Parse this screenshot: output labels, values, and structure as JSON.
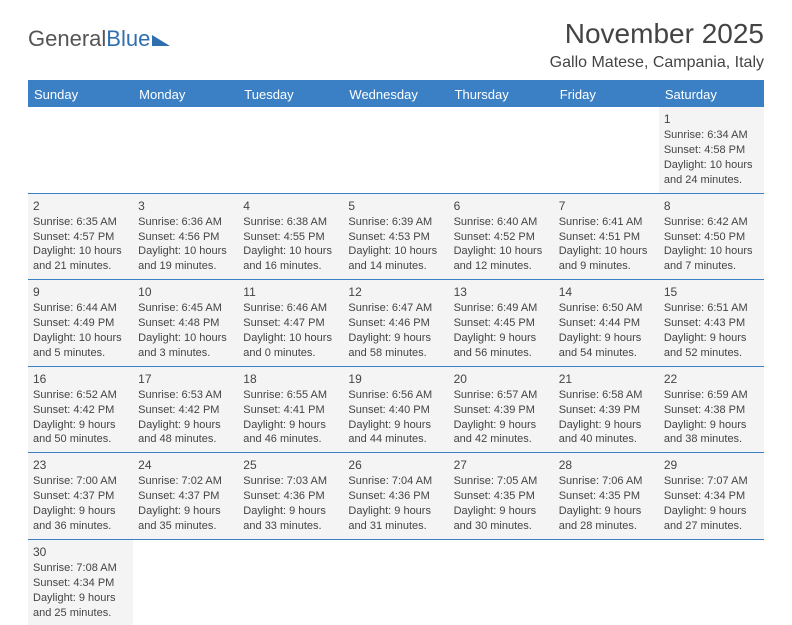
{
  "logo": {
    "part1": "General",
    "part2": "Blue"
  },
  "title": "November 2025",
  "location": "Gallo Matese, Campania, Italy",
  "colors": {
    "header_bg": "#3b7fc4",
    "header_text": "#ffffff",
    "cell_bg": "#f4f4f4",
    "text": "#444444",
    "border": "#3b7fc4",
    "logo_gray": "#555555",
    "logo_blue": "#2f6fb0"
  },
  "weekdays": [
    "Sunday",
    "Monday",
    "Tuesday",
    "Wednesday",
    "Thursday",
    "Friday",
    "Saturday"
  ],
  "weeks": [
    [
      null,
      null,
      null,
      null,
      null,
      null,
      {
        "n": "1",
        "sr": "6:34 AM",
        "ss": "4:58 PM",
        "dl": "10 hours and 24 minutes."
      }
    ],
    [
      {
        "n": "2",
        "sr": "6:35 AM",
        "ss": "4:57 PM",
        "dl": "10 hours and 21 minutes."
      },
      {
        "n": "3",
        "sr": "6:36 AM",
        "ss": "4:56 PM",
        "dl": "10 hours and 19 minutes."
      },
      {
        "n": "4",
        "sr": "6:38 AM",
        "ss": "4:55 PM",
        "dl": "10 hours and 16 minutes."
      },
      {
        "n": "5",
        "sr": "6:39 AM",
        "ss": "4:53 PM",
        "dl": "10 hours and 14 minutes."
      },
      {
        "n": "6",
        "sr": "6:40 AM",
        "ss": "4:52 PM",
        "dl": "10 hours and 12 minutes."
      },
      {
        "n": "7",
        "sr": "6:41 AM",
        "ss": "4:51 PM",
        "dl": "10 hours and 9 minutes."
      },
      {
        "n": "8",
        "sr": "6:42 AM",
        "ss": "4:50 PM",
        "dl": "10 hours and 7 minutes."
      }
    ],
    [
      {
        "n": "9",
        "sr": "6:44 AM",
        "ss": "4:49 PM",
        "dl": "10 hours and 5 minutes."
      },
      {
        "n": "10",
        "sr": "6:45 AM",
        "ss": "4:48 PM",
        "dl": "10 hours and 3 minutes."
      },
      {
        "n": "11",
        "sr": "6:46 AM",
        "ss": "4:47 PM",
        "dl": "10 hours and 0 minutes."
      },
      {
        "n": "12",
        "sr": "6:47 AM",
        "ss": "4:46 PM",
        "dl": "9 hours and 58 minutes."
      },
      {
        "n": "13",
        "sr": "6:49 AM",
        "ss": "4:45 PM",
        "dl": "9 hours and 56 minutes."
      },
      {
        "n": "14",
        "sr": "6:50 AM",
        "ss": "4:44 PM",
        "dl": "9 hours and 54 minutes."
      },
      {
        "n": "15",
        "sr": "6:51 AM",
        "ss": "4:43 PM",
        "dl": "9 hours and 52 minutes."
      }
    ],
    [
      {
        "n": "16",
        "sr": "6:52 AM",
        "ss": "4:42 PM",
        "dl": "9 hours and 50 minutes."
      },
      {
        "n": "17",
        "sr": "6:53 AM",
        "ss": "4:42 PM",
        "dl": "9 hours and 48 minutes."
      },
      {
        "n": "18",
        "sr": "6:55 AM",
        "ss": "4:41 PM",
        "dl": "9 hours and 46 minutes."
      },
      {
        "n": "19",
        "sr": "6:56 AM",
        "ss": "4:40 PM",
        "dl": "9 hours and 44 minutes."
      },
      {
        "n": "20",
        "sr": "6:57 AM",
        "ss": "4:39 PM",
        "dl": "9 hours and 42 minutes."
      },
      {
        "n": "21",
        "sr": "6:58 AM",
        "ss": "4:39 PM",
        "dl": "9 hours and 40 minutes."
      },
      {
        "n": "22",
        "sr": "6:59 AM",
        "ss": "4:38 PM",
        "dl": "9 hours and 38 minutes."
      }
    ],
    [
      {
        "n": "23",
        "sr": "7:00 AM",
        "ss": "4:37 PM",
        "dl": "9 hours and 36 minutes."
      },
      {
        "n": "24",
        "sr": "7:02 AM",
        "ss": "4:37 PM",
        "dl": "9 hours and 35 minutes."
      },
      {
        "n": "25",
        "sr": "7:03 AM",
        "ss": "4:36 PM",
        "dl": "9 hours and 33 minutes."
      },
      {
        "n": "26",
        "sr": "7:04 AM",
        "ss": "4:36 PM",
        "dl": "9 hours and 31 minutes."
      },
      {
        "n": "27",
        "sr": "7:05 AM",
        "ss": "4:35 PM",
        "dl": "9 hours and 30 minutes."
      },
      {
        "n": "28",
        "sr": "7:06 AM",
        "ss": "4:35 PM",
        "dl": "9 hours and 28 minutes."
      },
      {
        "n": "29",
        "sr": "7:07 AM",
        "ss": "4:34 PM",
        "dl": "9 hours and 27 minutes."
      }
    ],
    [
      {
        "n": "30",
        "sr": "7:08 AM",
        "ss": "4:34 PM",
        "dl": "9 hours and 25 minutes."
      },
      null,
      null,
      null,
      null,
      null,
      null
    ]
  ],
  "labels": {
    "sunrise": "Sunrise: ",
    "sunset": "Sunset: ",
    "daylight": "Daylight: "
  }
}
